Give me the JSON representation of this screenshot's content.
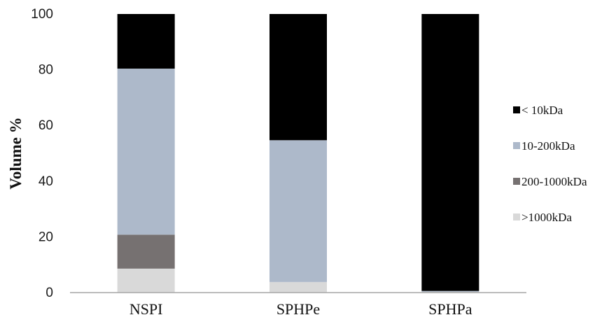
{
  "chart_data": {
    "type": "bar",
    "stacked": true,
    "categories": [
      "NSPI",
      "SPHPe",
      "SPHPa"
    ],
    "series": [
      {
        "name": ">1000kDa",
        "color": "#d9d9d9",
        "values": [
          8.6,
          3.8,
          0.3
        ]
      },
      {
        "name": "200-1000kDa",
        "color": "#767171",
        "values": [
          12.2,
          0,
          0
        ]
      },
      {
        "name": "10-200kDa",
        "color": "#adb9ca",
        "values": [
          59.6,
          50.9,
          0.3
        ]
      },
      {
        "name": "< 10kDa",
        "color": "#000000",
        "values": [
          19.6,
          45.3,
          99.4
        ]
      }
    ],
    "legend_order": [
      "< 10kDa",
      "10-200kDa",
      "200-1000kDa",
      ">1000kDa"
    ],
    "title": "",
    "xlabel": "",
    "ylabel": "Volume  %",
    "ylim": [
      0,
      100
    ],
    "yticks": [
      0,
      20,
      40,
      60,
      80,
      100
    ],
    "grid": false,
    "legend_position": "right"
  }
}
